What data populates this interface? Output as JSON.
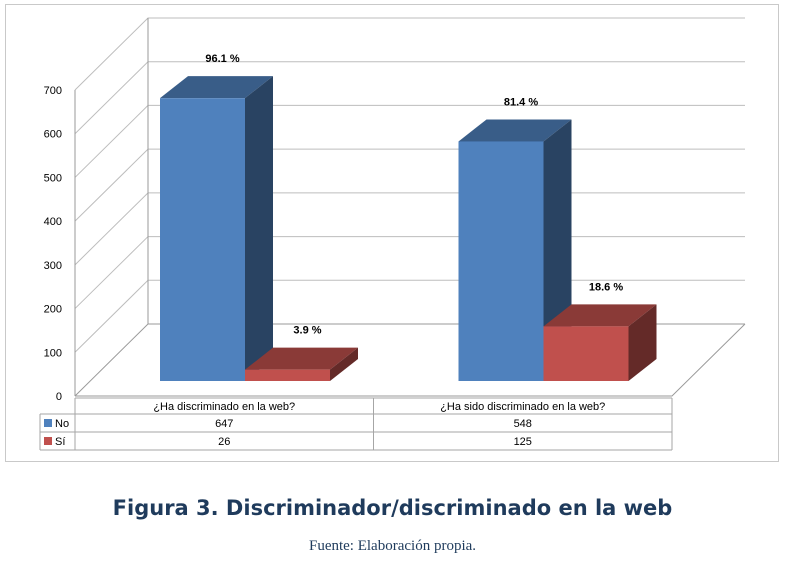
{
  "chart_data": {
    "type": "bar",
    "categories": [
      "¿Ha discriminado en la web?",
      "¿Ha sido discriminado en la web?"
    ],
    "series": [
      {
        "name": "No",
        "values": [
          647,
          548
        ],
        "labels": [
          "96.1 %",
          "81.4 %"
        ],
        "color": "#4f81bd"
      },
      {
        "name": "Sí",
        "values": [
          26,
          125
        ],
        "labels": [
          "3.9 %",
          "18.6 %"
        ],
        "color": "#c0504d"
      }
    ],
    "yticks": [
      0,
      100,
      200,
      300,
      400,
      500,
      600,
      700
    ],
    "ylim": [
      0,
      700
    ],
    "grid": true,
    "legend": "data-table-left",
    "three_d": true
  },
  "caption": {
    "title": "Figura 3. Discriminador/discriminado en la web",
    "source": "Fuente: Elaboración propia."
  }
}
